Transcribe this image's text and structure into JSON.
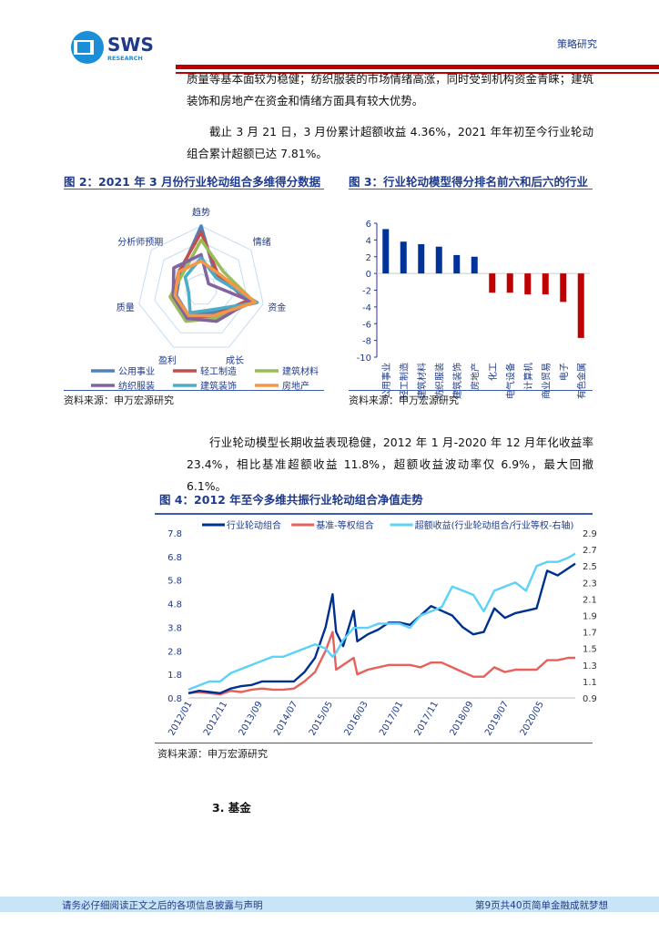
{
  "header": {
    "logo_text": "SWS",
    "logo_sub": "RESEARCH",
    "category": "策略研究"
  },
  "body": {
    "p1": "质量等基本面较为稳健；纺织服装的市场情绪高涨，同时受到机构资金青睐；建筑装饰和房地产在资金和情绪方面具有较大优势。",
    "p2": "截止 3 月 21 日，3 月份累计超额收益 4.36%，2021 年年初至今行业轮动组合累计超额已达 7.81%。",
    "p3": "行业轮动模型长期收益表现稳健，2012 年 1 月-2020 年 12 月年化收益率 23.4%，相比基准超额收益 11.8%，超额收益波动率仅 6.9%，最大回撤 6.1%。",
    "section": "3.  基金"
  },
  "figures": {
    "fig2_title": "图 2：2021 年 3 月份行业轮动组合多维得分数据",
    "fig3_title": "图 3：行业轮动模型得分排名前六和后六的行业",
    "fig4_title": "图 4：2012 年至今多维共振行业轮动组合净值走势",
    "source": "资料来源：申万宏源研究"
  },
  "footer": {
    "disclaimer": "请务必仔细阅读正文之后的各项信息披露与声明",
    "page": "第9页共40页简单金融成就梦想"
  },
  "chart_data": [
    {
      "type": "radar",
      "axes": [
        "趋势",
        "情绪",
        "资金",
        "成长",
        "盈利",
        "质量",
        "分析师预期"
      ],
      "range": [
        0,
        1
      ],
      "series": [
        {
          "name": "公用事业",
          "color": "#4f81bd",
          "values": [
            1.0,
            0.3,
            0.9,
            0.4,
            0.45,
            0.4,
            0.42
          ]
        },
        {
          "name": "轻工制造",
          "color": "#c0504d",
          "values": [
            0.9,
            0.35,
            0.75,
            0.45,
            0.5,
            0.45,
            0.45
          ]
        },
        {
          "name": "建筑材料",
          "color": "#9bbb59",
          "values": [
            0.78,
            0.45,
            0.85,
            0.5,
            0.55,
            0.5,
            0.38
          ]
        },
        {
          "name": "纺织服装",
          "color": "#8064a2",
          "values": [
            0.55,
            0.15,
            0.8,
            0.55,
            0.5,
            0.45,
            0.55
          ]
        },
        {
          "name": "建筑装饰",
          "color": "#4bacc6",
          "values": [
            0.5,
            0.3,
            0.9,
            0.35,
            0.4,
            0.2,
            0.32
          ]
        },
        {
          "name": "房地产",
          "color": "#f79646",
          "values": [
            0.45,
            0.38,
            0.87,
            0.45,
            0.45,
            0.42,
            0.45
          ]
        }
      ],
      "legend": "bottom"
    },
    {
      "type": "bar",
      "categories": [
        "公用事业",
        "轻工制造",
        "建筑材料",
        "纺织服装",
        "建筑装饰",
        "房地产",
        "化工",
        "电气设备",
        "计算机",
        "商业贸易",
        "电子",
        "有色金属"
      ],
      "values": [
        5.3,
        3.8,
        3.5,
        3.2,
        2.2,
        2.0,
        -2.3,
        -2.3,
        -2.5,
        -2.5,
        -3.4,
        -7.7
      ],
      "ylim": [
        -10,
        6
      ],
      "yticks": [
        6,
        4,
        2,
        0,
        -2,
        -4,
        -6,
        -8,
        -10
      ],
      "colors": {
        "positive": "#00339a",
        "negative": "#c00000"
      }
    },
    {
      "type": "line",
      "x": [
        "2012-01",
        "2012-04",
        "2012-07",
        "2012-10",
        "2013-01",
        "2013-04",
        "2013-07",
        "2013-10",
        "2014-01",
        "2014-04",
        "2014-07",
        "2014-10",
        "2015-01",
        "2015-04",
        "2015-06",
        "2015-07",
        "2015-09",
        "2015-12",
        "2016-01",
        "2016-04",
        "2016-07",
        "2016-10",
        "2017-01",
        "2017-04",
        "2017-07",
        "2017-10",
        "2018-01",
        "2018-04",
        "2018-07",
        "2018-10",
        "2019-01",
        "2019-04",
        "2019-07",
        "2019-10",
        "2020-01",
        "2020-04",
        "2020-07",
        "2020-10",
        "2021-01",
        "2021-03"
      ],
      "xticks": [
        "2012/01",
        "2012/11",
        "2013/09",
        "2014/07",
        "2015/05",
        "2016/03",
        "2017/01",
        "2017/11",
        "2018/09",
        "2019/07",
        "2020/05"
      ],
      "ylim": [
        0.8,
        7.8
      ],
      "yticks": [
        0.8,
        1.8,
        2.8,
        3.8,
        4.8,
        5.8,
        6.8,
        7.8
      ],
      "y2lim": [
        0.9,
        2.9
      ],
      "y2ticks": [
        0.9,
        1.1,
        1.3,
        1.5,
        1.7,
        1.9,
        2.1,
        2.3,
        2.5,
        2.7,
        2.9
      ],
      "legend": "top",
      "series": [
        {
          "name": "行业轮动组合",
          "axis": "left",
          "color": "#00308f",
          "values": [
            1.0,
            1.1,
            1.05,
            1.0,
            1.2,
            1.3,
            1.35,
            1.5,
            1.5,
            1.5,
            1.5,
            1.9,
            2.5,
            3.8,
            5.2,
            3.6,
            3.0,
            4.5,
            3.2,
            3.5,
            3.7,
            4.0,
            4.0,
            3.9,
            4.3,
            4.7,
            4.5,
            4.3,
            3.8,
            3.5,
            3.6,
            4.6,
            4.2,
            4.4,
            4.5,
            4.6,
            6.2,
            6.0,
            6.3,
            6.5
          ]
        },
        {
          "name": "基准-等权组合",
          "axis": "left",
          "color": "#e8605a",
          "values": [
            1.0,
            1.05,
            1.0,
            0.95,
            1.1,
            1.05,
            1.15,
            1.2,
            1.15,
            1.15,
            1.2,
            1.5,
            1.9,
            2.8,
            3.6,
            2.0,
            2.2,
            2.5,
            1.8,
            2.0,
            2.1,
            2.2,
            2.2,
            2.2,
            2.1,
            2.3,
            2.3,
            2.1,
            1.9,
            1.7,
            1.7,
            2.1,
            1.9,
            2.0,
            2.0,
            2.0,
            2.4,
            2.4,
            2.5,
            2.5
          ]
        },
        {
          "name": "超额收益(行业轮动组合/行业等权-右轴)",
          "axis": "right",
          "color": "#5ad2fa",
          "values": [
            1.0,
            1.05,
            1.1,
            1.1,
            1.2,
            1.25,
            1.3,
            1.35,
            1.4,
            1.4,
            1.45,
            1.5,
            1.55,
            1.5,
            1.4,
            1.45,
            1.6,
            1.75,
            1.75,
            1.75,
            1.8,
            1.8,
            1.8,
            1.75,
            1.9,
            1.95,
            2.0,
            2.25,
            2.2,
            2.15,
            1.95,
            2.2,
            2.25,
            2.3,
            2.2,
            2.5,
            2.55,
            2.55,
            2.6,
            2.65
          ]
        }
      ]
    }
  ]
}
